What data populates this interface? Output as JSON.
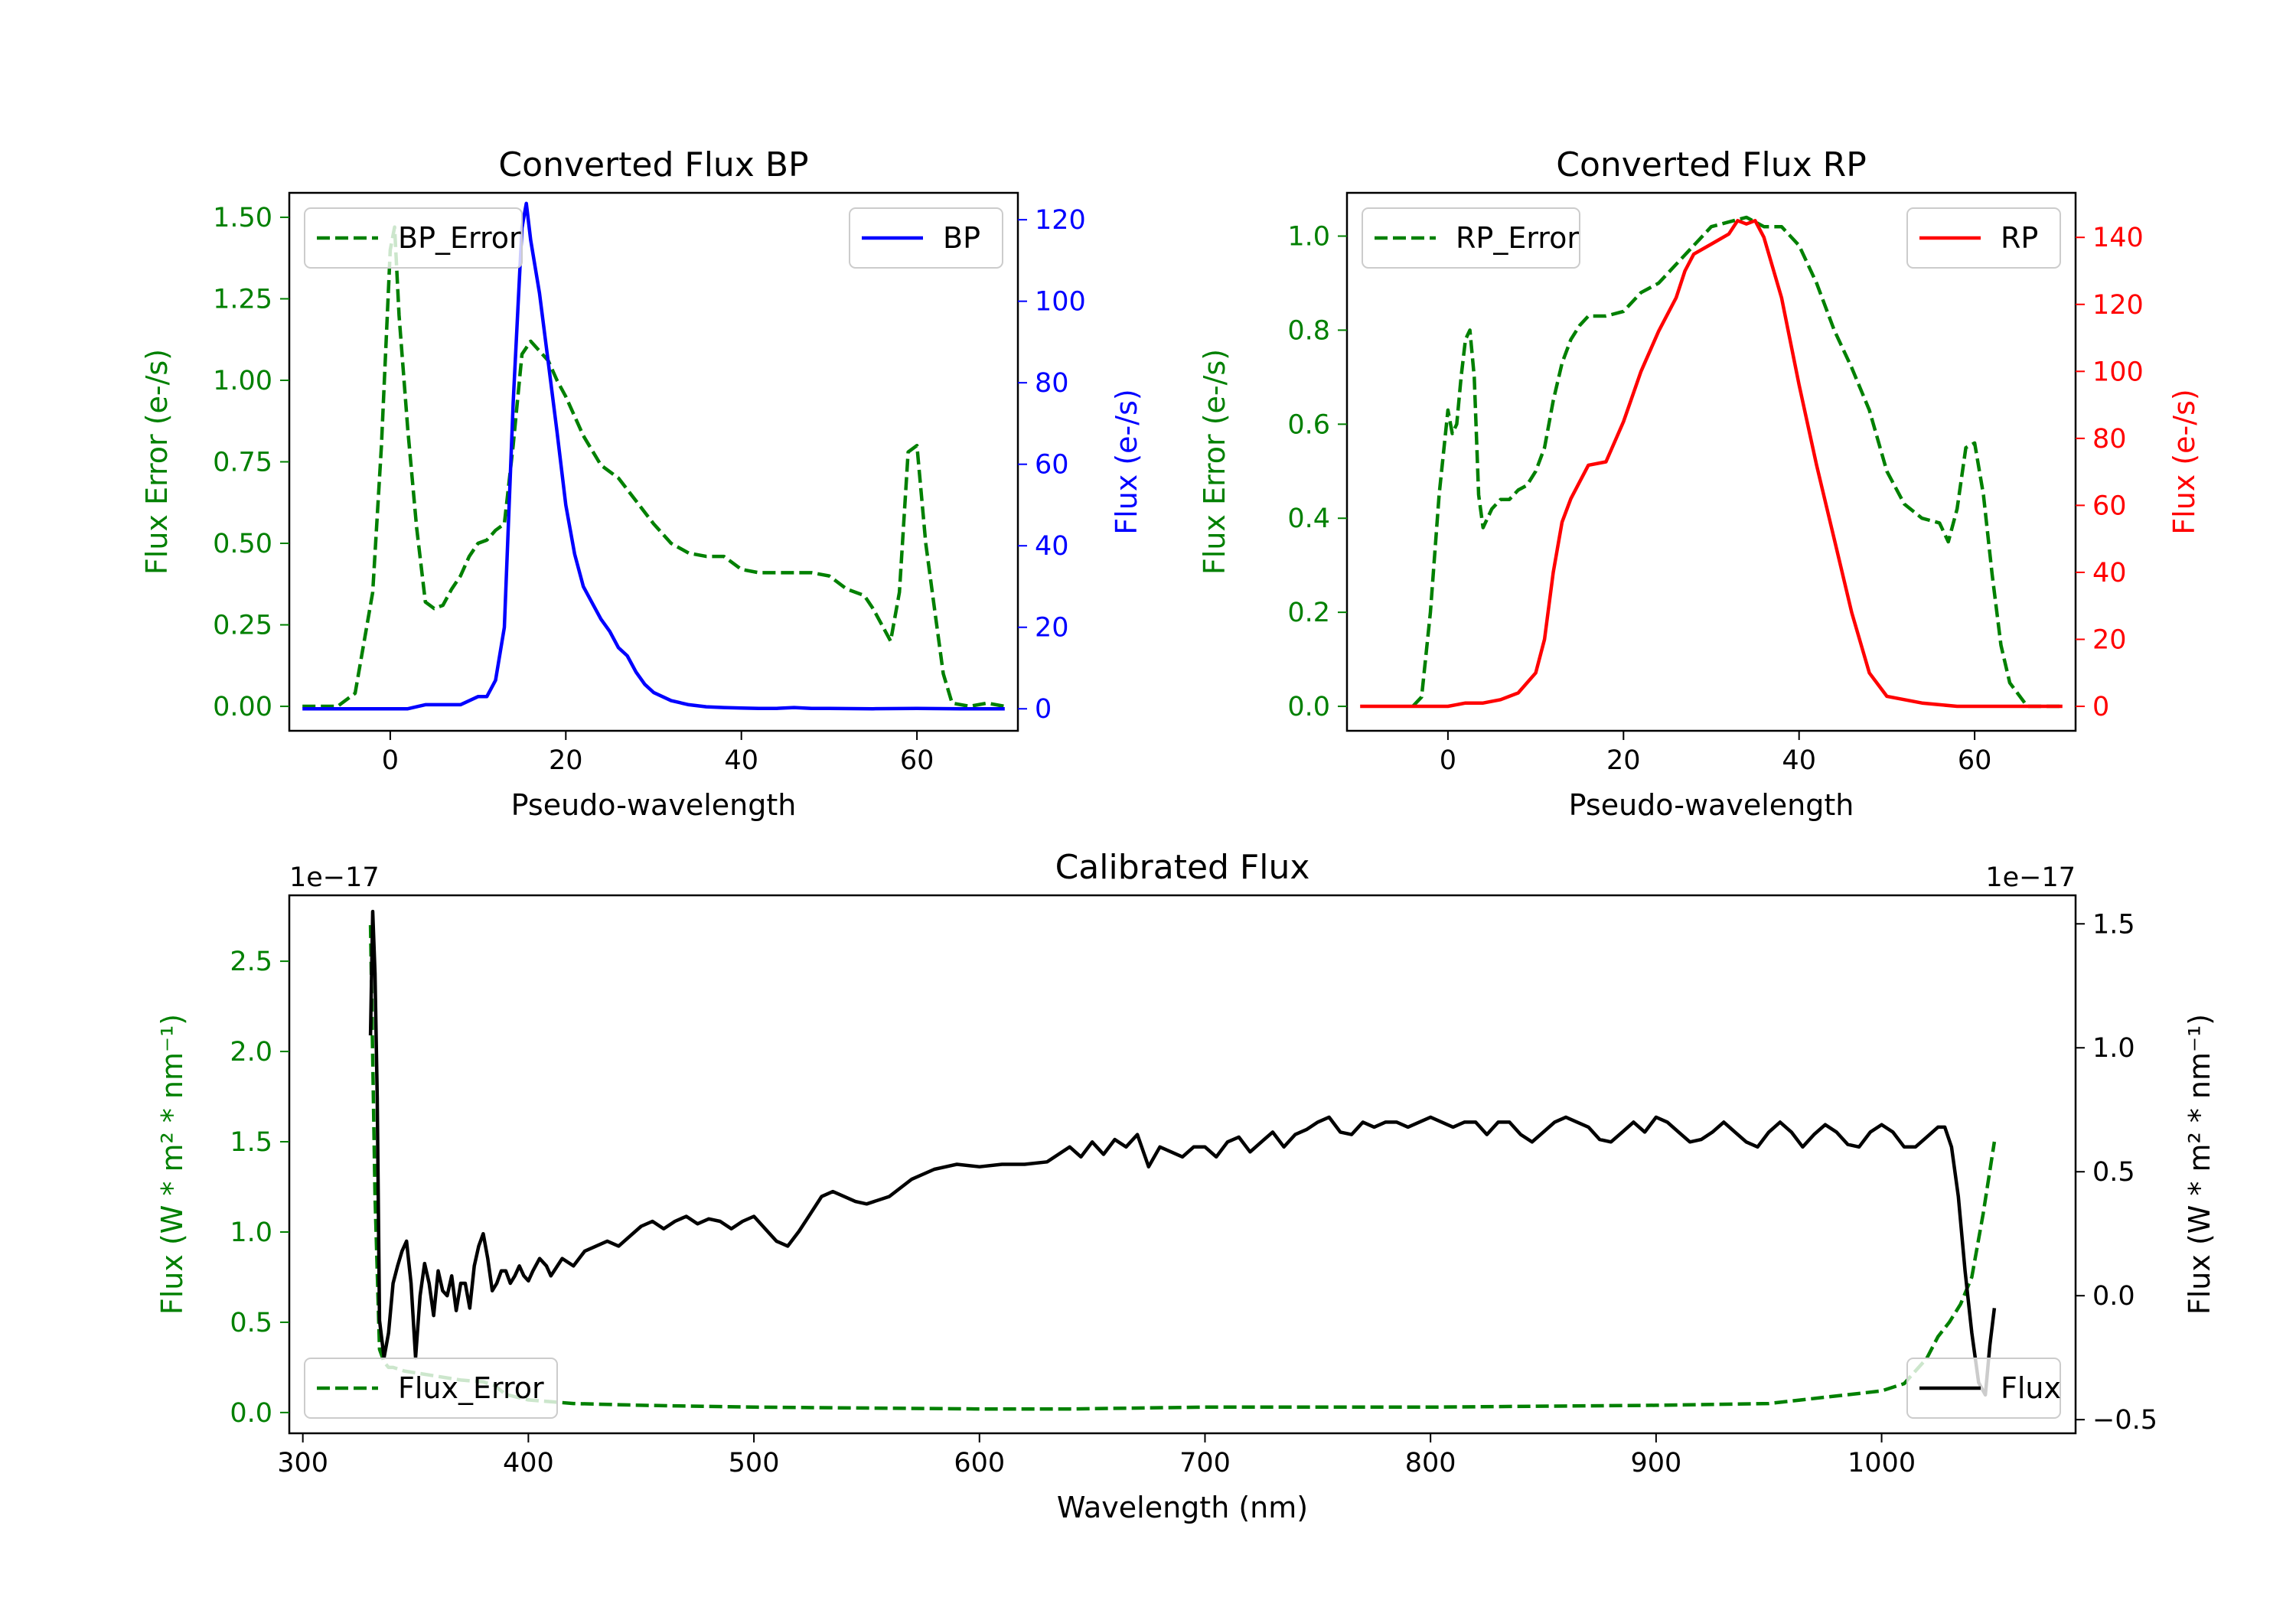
{
  "chart_data": [
    {
      "type": "line",
      "title": "Converted Flux BP",
      "xlabel": "Pseudo-wavelength",
      "ylabel": "Flux Error (e-/s)",
      "ylabel2": "Flux (e-/s)",
      "xlim": [
        -11.5,
        71.5
      ],
      "ylim": [
        -0.075,
        1.575
      ],
      "ylim2": [
        -5.4,
        126.6
      ],
      "xticks": [
        "0",
        "20",
        "40",
        "60"
      ],
      "yticks": [
        "0.00",
        "0.25",
        "0.50",
        "0.75",
        "1.00",
        "1.25",
        "1.50"
      ],
      "yticks2": [
        "0",
        "20",
        "40",
        "60",
        "80",
        "100",
        "120"
      ],
      "legend_left": "upper left",
      "legend_right": "upper right",
      "series": [
        {
          "name": "BP_Error",
          "axis": "left",
          "style": "dashed",
          "color": "#008000",
          "x": [
            -10,
            -6,
            -4,
            -2,
            -1,
            0,
            0.5,
            1,
            2,
            3,
            4,
            5,
            6,
            7,
            8,
            9,
            10,
            11,
            12,
            13,
            14,
            15,
            16,
            17,
            18,
            19,
            20,
            22,
            24,
            26,
            28,
            30,
            32,
            34,
            36,
            38,
            40,
            42,
            44,
            46,
            48,
            50,
            52,
            54,
            55,
            56,
            57,
            58,
            59,
            60,
            61,
            62,
            63,
            64,
            66,
            68,
            70
          ],
          "y": [
            0,
            0,
            0.04,
            0.35,
            0.8,
            1.4,
            1.47,
            1.2,
            0.85,
            0.55,
            0.32,
            0.3,
            0.31,
            0.36,
            0.4,
            0.46,
            0.5,
            0.51,
            0.54,
            0.56,
            0.8,
            1.08,
            1.12,
            1.09,
            1.06,
            1.0,
            0.95,
            0.83,
            0.74,
            0.7,
            0.63,
            0.56,
            0.5,
            0.47,
            0.46,
            0.46,
            0.42,
            0.41,
            0.41,
            0.41,
            0.41,
            0.4,
            0.36,
            0.34,
            0.3,
            0.25,
            0.2,
            0.35,
            0.78,
            0.8,
            0.5,
            0.3,
            0.1,
            0.01,
            0,
            0.01,
            0
          ]
        },
        {
          "name": "BP",
          "axis": "right",
          "style": "solid",
          "color": "#0000ff",
          "x": [
            -10,
            -2,
            0,
            2,
            4,
            6,
            8,
            10,
            11,
            12,
            13,
            14,
            15,
            15.5,
            16,
            17,
            18,
            19,
            20,
            21,
            22,
            23,
            24,
            25,
            26,
            27,
            28,
            29,
            30,
            32,
            34,
            36,
            38,
            40,
            42,
            44,
            46,
            48,
            50,
            55,
            60,
            65,
            70
          ],
          "y": [
            0,
            0,
            0,
            0,
            1,
            1,
            1,
            3,
            3,
            7,
            20,
            75,
            118,
            124,
            115,
            102,
            85,
            68,
            50,
            38,
            30,
            26,
            22,
            19,
            15,
            13,
            9,
            6,
            4,
            2,
            1,
            0.5,
            0.3,
            0.2,
            0.1,
            0.1,
            0.3,
            0.1,
            0.1,
            0,
            0.1,
            0,
            0
          ]
        }
      ]
    },
    {
      "type": "line",
      "title": "Converted Flux RP",
      "xlabel": "Pseudo-wavelength",
      "ylabel": "Flux Error (e-/s)",
      "ylabel2": "Flux (e-/s)",
      "xlim": [
        -11.5,
        71.5
      ],
      "ylim": [
        -0.052,
        1.092
      ],
      "ylim2": [
        -7.3,
        153.3
      ],
      "xticks": [
        "0",
        "20",
        "40",
        "60"
      ],
      "yticks": [
        "0.0",
        "0.2",
        "0.4",
        "0.6",
        "0.8",
        "1.0"
      ],
      "yticks2": [
        "0",
        "20",
        "40",
        "60",
        "80",
        "100",
        "120",
        "140"
      ],
      "legend_left": "upper left",
      "legend_right": "upper right",
      "series": [
        {
          "name": "RP_Error",
          "axis": "left",
          "style": "dashed",
          "color": "#008000",
          "x": [
            -4,
            -3,
            -2,
            -1,
            0,
            0.5,
            1,
            1.5,
            2,
            2.5,
            3,
            3.5,
            4,
            5,
            6,
            7,
            8,
            9,
            10,
            11,
            12,
            13,
            14,
            15,
            16,
            18,
            20,
            22,
            24,
            26,
            28,
            30,
            32,
            34,
            36,
            38,
            40,
            42,
            44,
            46,
            48,
            50,
            52,
            54,
            56,
            57,
            58,
            59,
            60,
            61,
            62,
            63,
            64,
            66,
            70
          ],
          "y": [
            0,
            0.02,
            0.2,
            0.45,
            0.63,
            0.58,
            0.6,
            0.7,
            0.78,
            0.8,
            0.7,
            0.45,
            0.38,
            0.42,
            0.44,
            0.44,
            0.46,
            0.47,
            0.5,
            0.55,
            0.65,
            0.73,
            0.78,
            0.81,
            0.83,
            0.83,
            0.84,
            0.88,
            0.9,
            0.94,
            0.98,
            1.02,
            1.03,
            1.04,
            1.02,
            1.02,
            0.98,
            0.9,
            0.8,
            0.72,
            0.63,
            0.5,
            0.43,
            0.4,
            0.39,
            0.35,
            0.42,
            0.55,
            0.56,
            0.45,
            0.28,
            0.13,
            0.05,
            0,
            0
          ]
        },
        {
          "name": "RP",
          "axis": "right",
          "style": "solid",
          "color": "#ff0000",
          "x": [
            -10,
            -4,
            0,
            2,
            4,
            6,
            8,
            10,
            11,
            12,
            13,
            14,
            16,
            18,
            20,
            22,
            24,
            26,
            27,
            28,
            30,
            32,
            33,
            34,
            35,
            36,
            38,
            40,
            42,
            44,
            46,
            48,
            50,
            52,
            54,
            56,
            58,
            60,
            64,
            70
          ],
          "y": [
            0,
            0,
            0,
            1,
            1,
            2,
            4,
            10,
            20,
            40,
            55,
            62,
            72,
            73,
            85,
            100,
            112,
            122,
            130,
            135,
            138,
            141,
            145,
            144,
            145,
            140,
            122,
            96,
            72,
            50,
            28,
            10,
            3,
            2,
            1,
            0.5,
            0,
            0,
            0,
            0
          ]
        }
      ]
    },
    {
      "type": "line",
      "title": "Calibrated Flux",
      "xlabel": "Wavelength (nm)",
      "ylabel": "Flux (W * m² * nm⁻¹)",
      "ylabel2": "Flux (W * m² * nm⁻¹)",
      "offset_left": "1e−17",
      "offset_right": "1e−17",
      "xlim": [
        294,
        1086
      ],
      "ylim": [
        -0.115,
        2.865
      ],
      "ylim2": [
        -0.555,
        1.615
      ],
      "xticks": [
        "300",
        "400",
        "500",
        "600",
        "700",
        "800",
        "900",
        "1000"
      ],
      "yticks": [
        "0.0",
        "0.5",
        "1.0",
        "1.5",
        "2.0",
        "2.5"
      ],
      "yticks2": [
        "−0.5",
        "0.0",
        "0.5",
        "1.0",
        "1.5"
      ],
      "legend_left": "lower left",
      "legend_right": "lower right",
      "series": [
        {
          "name": "Flux_Error",
          "axis": "left",
          "style": "dashed",
          "color": "#008000",
          "x": [
            330,
            332,
            334,
            336,
            338,
            340,
            345,
            350,
            360,
            370,
            380,
            385,
            390,
            400,
            420,
            450,
            500,
            600,
            640,
            700,
            800,
            900,
            950,
            1000,
            1010,
            1020,
            1025,
            1030,
            1035,
            1040,
            1045,
            1050
          ],
          "y": [
            2.7,
            1.2,
            0.35,
            0.28,
            0.25,
            0.25,
            0.23,
            0.22,
            0.2,
            0.18,
            0.17,
            0.15,
            0.1,
            0.07,
            0.05,
            0.04,
            0.03,
            0.02,
            0.02,
            0.03,
            0.03,
            0.04,
            0.05,
            0.12,
            0.16,
            0.3,
            0.42,
            0.5,
            0.6,
            0.75,
            1.1,
            1.5
          ]
        },
        {
          "name": "Flux",
          "axis": "right",
          "style": "solid",
          "color": "#000000",
          "x": [
            330,
            331,
            332,
            333,
            334,
            336,
            338,
            340,
            342,
            344,
            346,
            348,
            350,
            352,
            354,
            356,
            358,
            360,
            362,
            364,
            366,
            368,
            370,
            372,
            374,
            376,
            378,
            380,
            382,
            384,
            386,
            388,
            390,
            392,
            394,
            396,
            398,
            400,
            402,
            405,
            408,
            410,
            415,
            420,
            425,
            430,
            435,
            440,
            445,
            450,
            455,
            460,
            465,
            470,
            475,
            480,
            485,
            490,
            495,
            500,
            505,
            510,
            515,
            520,
            525,
            530,
            535,
            540,
            545,
            550,
            560,
            570,
            580,
            590,
            600,
            610,
            620,
            630,
            640,
            645,
            650,
            655,
            660,
            665,
            670,
            675,
            680,
            685,
            690,
            695,
            700,
            705,
            710,
            715,
            720,
            725,
            730,
            735,
            740,
            745,
            750,
            755,
            760,
            765,
            770,
            775,
            780,
            785,
            790,
            795,
            800,
            805,
            810,
            815,
            820,
            825,
            830,
            835,
            840,
            845,
            850,
            855,
            860,
            865,
            870,
            875,
            880,
            885,
            890,
            895,
            900,
            905,
            910,
            915,
            920,
            925,
            930,
            935,
            940,
            945,
            950,
            955,
            960,
            965,
            970,
            975,
            980,
            985,
            990,
            995,
            1000,
            1005,
            1010,
            1015,
            1020,
            1025,
            1028,
            1031,
            1034,
            1037,
            1040,
            1043,
            1046,
            1048,
            1050
          ],
          "y": [
            1.05,
            1.55,
            1.3,
            0.8,
            -0.1,
            -0.25,
            -0.15,
            0.05,
            0.12,
            0.18,
            0.22,
            0.05,
            -0.25,
            0.0,
            0.13,
            0.05,
            -0.08,
            0.1,
            0.02,
            0.0,
            0.08,
            -0.06,
            0.05,
            0.05,
            -0.05,
            0.12,
            0.2,
            0.25,
            0.15,
            0.02,
            0.05,
            0.1,
            0.1,
            0.05,
            0.08,
            0.12,
            0.08,
            0.06,
            0.1,
            0.15,
            0.12,
            0.08,
            0.15,
            0.12,
            0.18,
            0.2,
            0.22,
            0.2,
            0.24,
            0.28,
            0.3,
            0.27,
            0.3,
            0.32,
            0.29,
            0.31,
            0.3,
            0.27,
            0.3,
            0.32,
            0.27,
            0.22,
            0.2,
            0.26,
            0.33,
            0.4,
            0.42,
            0.4,
            0.38,
            0.37,
            0.4,
            0.47,
            0.51,
            0.53,
            0.52,
            0.53,
            0.53,
            0.54,
            0.6,
            0.56,
            0.62,
            0.57,
            0.63,
            0.6,
            0.65,
            0.52,
            0.6,
            0.58,
            0.56,
            0.6,
            0.6,
            0.56,
            0.62,
            0.64,
            0.58,
            0.62,
            0.66,
            0.6,
            0.65,
            0.67,
            0.7,
            0.72,
            0.66,
            0.65,
            0.7,
            0.68,
            0.7,
            0.7,
            0.68,
            0.7,
            0.72,
            0.7,
            0.68,
            0.7,
            0.7,
            0.65,
            0.7,
            0.7,
            0.65,
            0.62,
            0.66,
            0.7,
            0.72,
            0.7,
            0.68,
            0.63,
            0.62,
            0.66,
            0.7,
            0.66,
            0.72,
            0.7,
            0.66,
            0.62,
            0.63,
            0.66,
            0.7,
            0.66,
            0.62,
            0.6,
            0.66,
            0.7,
            0.66,
            0.6,
            0.65,
            0.69,
            0.66,
            0.61,
            0.6,
            0.66,
            0.69,
            0.66,
            0.6,
            0.6,
            0.64,
            0.68,
            0.68,
            0.6,
            0.4,
            0.1,
            -0.15,
            -0.35,
            -0.4,
            -0.2,
            -0.05
          ]
        }
      ]
    }
  ]
}
